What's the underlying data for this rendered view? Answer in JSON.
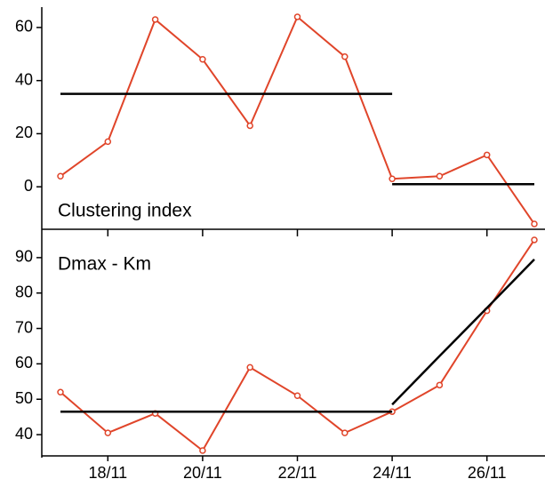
{
  "chart_data": [
    {
      "type": "line",
      "label": "Clustering index",
      "ylim": [
        -16,
        67
      ],
      "yticks": [
        0,
        20,
        40,
        60
      ],
      "series": [
        {
          "color": "#e0452a",
          "markers": true,
          "values": [
            4,
            17,
            63,
            48,
            23,
            64,
            49,
            3,
            4,
            12,
            -14
          ]
        },
        {
          "color": "#000000",
          "markers": false,
          "values": [
            35,
            35,
            35,
            35,
            35,
            35,
            35,
            35,
            null,
            null,
            null
          ]
        },
        {
          "color": "#000000",
          "markers": false,
          "values": [
            null,
            null,
            null,
            null,
            null,
            null,
            null,
            1,
            1,
            1,
            1
          ]
        }
      ]
    },
    {
      "type": "line",
      "label": "Dmax - Km",
      "categories": [
        null,
        "18/11",
        null,
        "20/11",
        null,
        "22/11",
        null,
        "24/11",
        null,
        "26/11",
        null
      ],
      "ylim": [
        34,
        97
      ],
      "yticks": [
        40,
        50,
        60,
        70,
        80,
        90
      ],
      "series": [
        {
          "color": "#e0452a",
          "markers": true,
          "values": [
            52,
            40.5,
            46,
            35.5,
            59,
            51,
            40.5,
            46.5,
            54,
            75,
            95
          ]
        },
        {
          "color": "#000000",
          "markers": false,
          "values": [
            46.5,
            46.5,
            46.5,
            46.5,
            46.5,
            46.5,
            46.5,
            46.5,
            null,
            null,
            null
          ]
        },
        {
          "color": "#000000",
          "markers": false,
          "values": [
            null,
            null,
            null,
            null,
            null,
            null,
            null,
            48.5,
            62.2,
            75.8,
            89.5
          ]
        }
      ]
    }
  ]
}
